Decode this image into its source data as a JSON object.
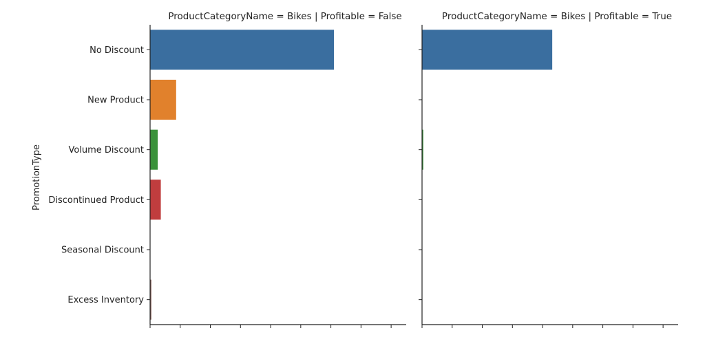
{
  "chart_data": {
    "type": "bar",
    "orientation": "horizontal",
    "ylabel": "PromotionType",
    "categories": [
      "No Discount",
      "New Product",
      "Volume Discount",
      "Discontinued Product",
      "Seasonal Discount",
      "Excess Inventory"
    ],
    "colors": [
      "#3a6e9f",
      "#e1812c",
      "#3a923a",
      "#c03d3e",
      "#9372b2",
      "#845b53"
    ],
    "xlim": [
      0,
      1
    ],
    "panels": [
      {
        "title": "ProductCategoryName = Bikes | Profitable = False",
        "values": [
          0.6,
          0.085,
          0.025,
          0.035,
          0.0,
          0.004
        ]
      },
      {
        "title": "ProductCategoryName = Bikes | Profitable = True",
        "values": [
          0.425,
          0.0,
          0.004,
          0.0,
          0.0,
          0.0
        ]
      }
    ]
  }
}
